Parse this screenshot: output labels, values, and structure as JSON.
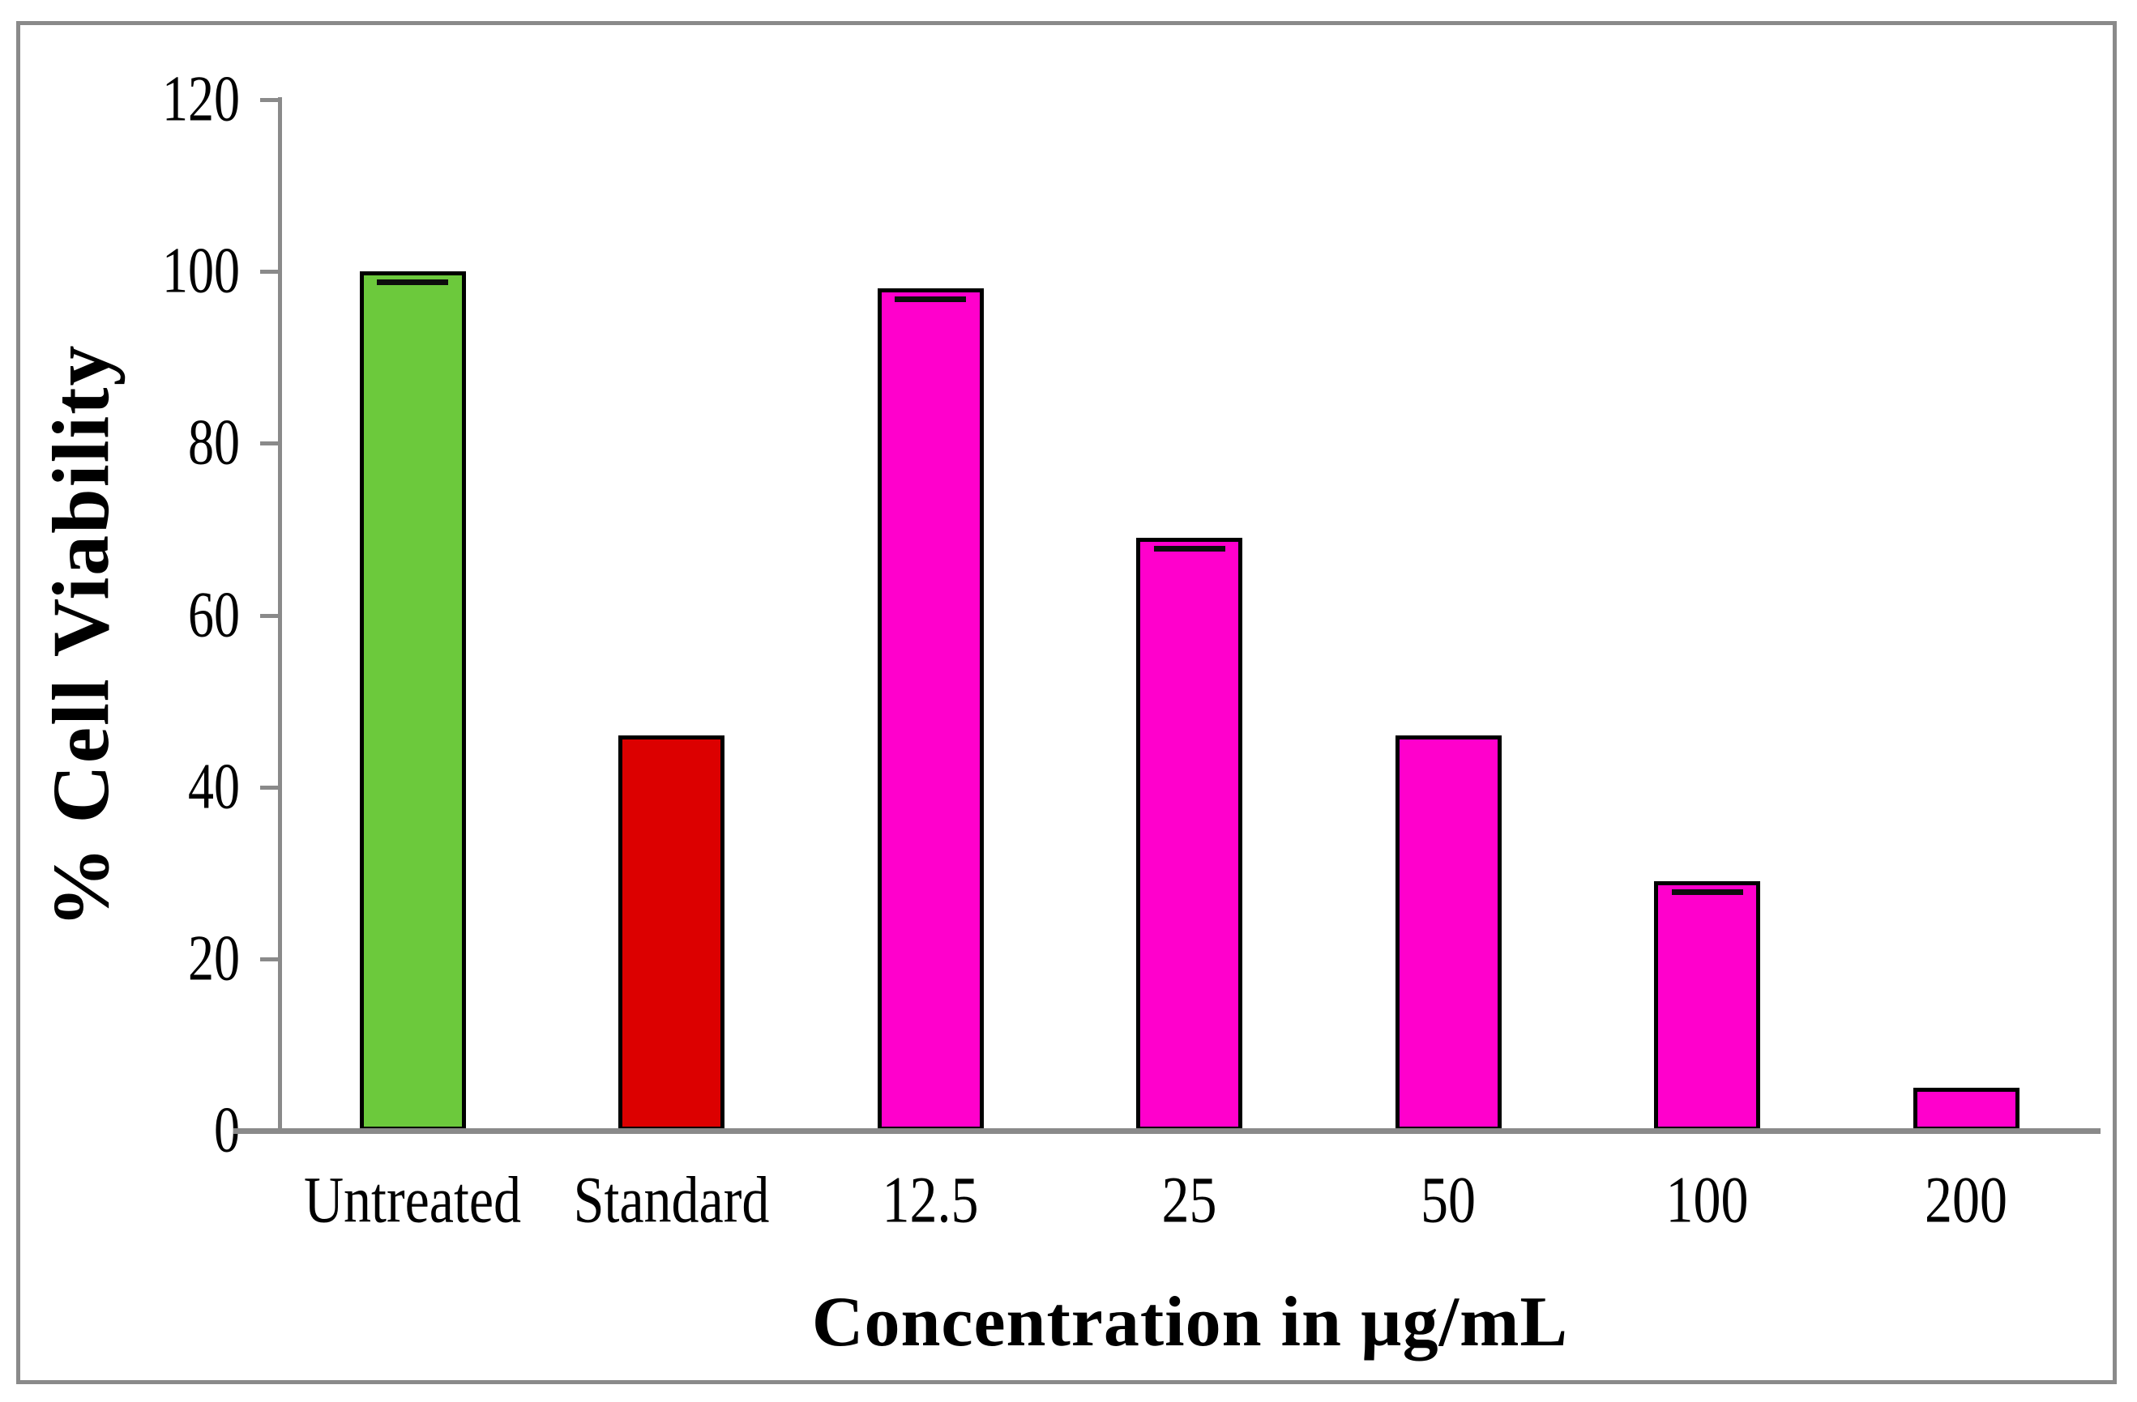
{
  "chart_data": {
    "type": "bar",
    "title": "",
    "categories": [
      "Untreated",
      "Standard",
      "12.5",
      "25",
      "50",
      "100",
      "200"
    ],
    "values": [
      100,
      46,
      98,
      69,
      46,
      29,
      5
    ],
    "bar_colors": [
      "#6CC93C",
      "#DC0000",
      "#FF00CC",
      "#FF00CC",
      "#FF00CC",
      "#FF00CC",
      "#FF00CC"
    ],
    "error_caps": [
      true,
      false,
      true,
      true,
      false,
      true,
      false
    ],
    "xlabel": "Concentration in µg/mL",
    "ylabel": "% Cell Viability",
    "ylim": [
      0,
      120
    ],
    "yticks": [
      0,
      20,
      40,
      60,
      80,
      100,
      120
    ],
    "grid": false,
    "legend": "none"
  },
  "colors": {
    "axis": "#8a8a8a",
    "frame": "#8a8a8a",
    "bar_outline": "#000000",
    "untreated_green": "#6CC93C",
    "standard_red": "#DC0000",
    "treatment_magenta": "#FF00CC"
  }
}
